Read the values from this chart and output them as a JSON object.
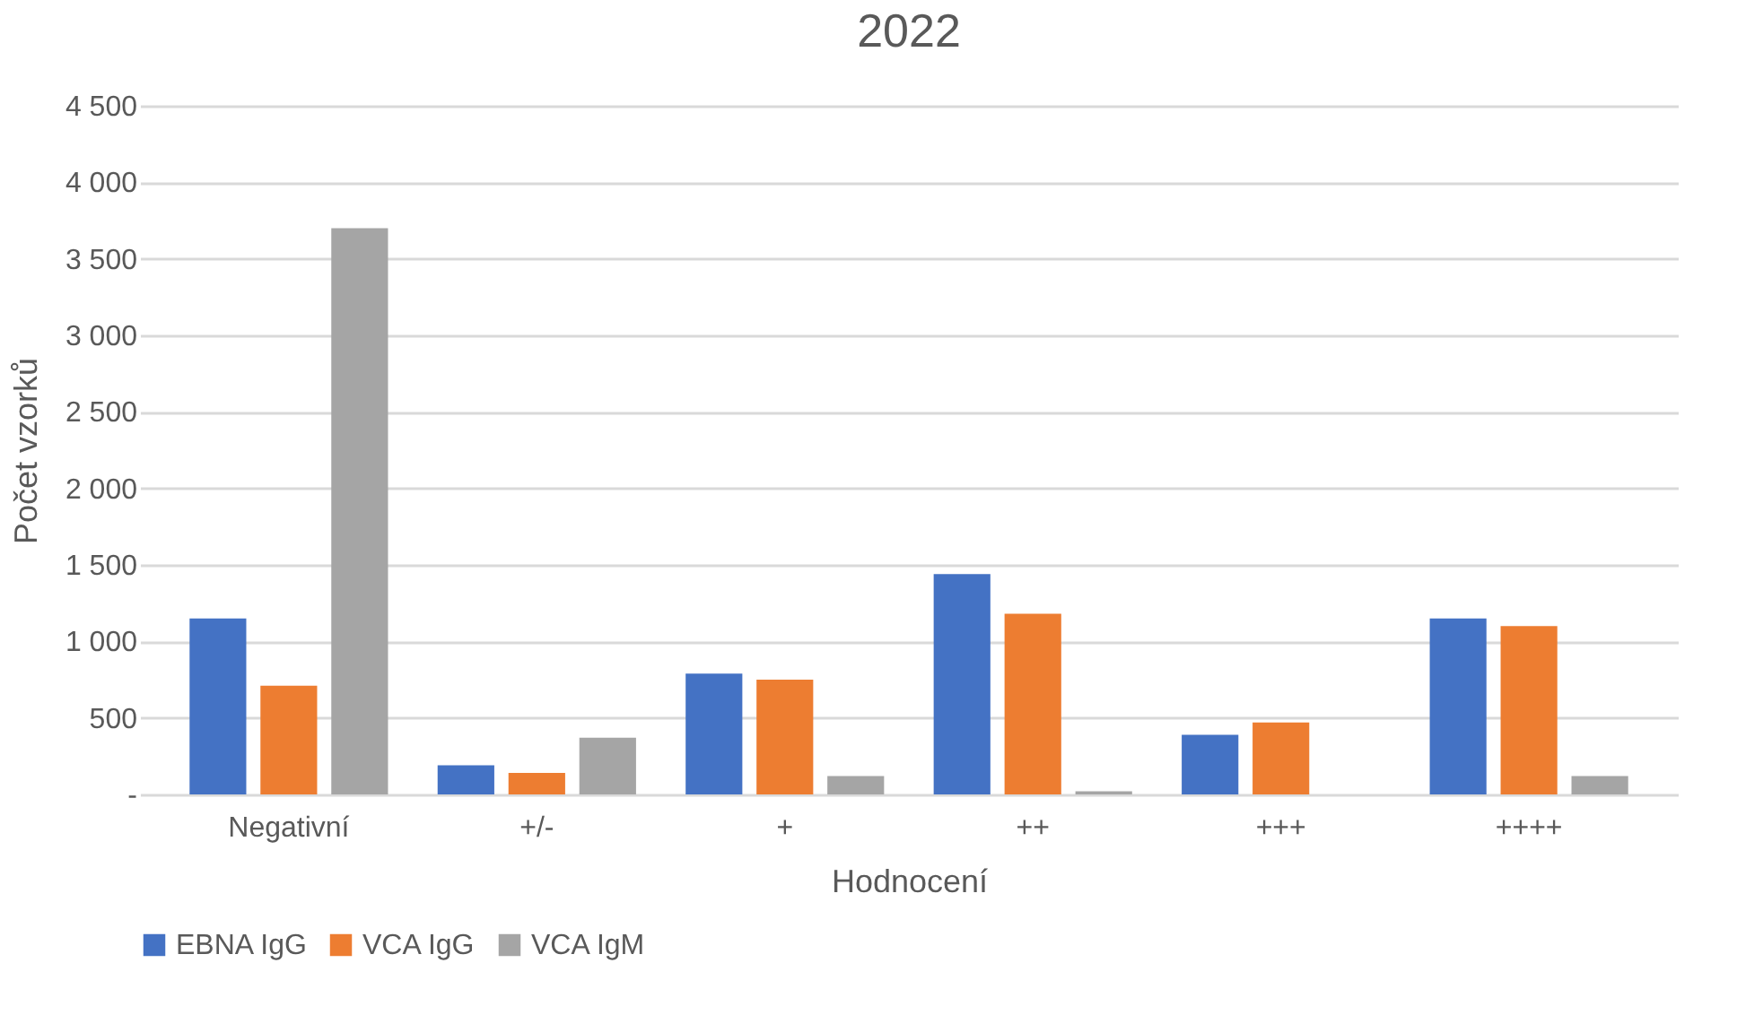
{
  "chart_data": {
    "type": "bar",
    "title": "2022",
    "xlabel": "Hodnocení",
    "ylabel": "Počet vzorků",
    "categories": [
      "Negativní",
      "+/-",
      "+",
      "++",
      "+++",
      "++++"
    ],
    "series": [
      {
        "name": "EBNA IgG",
        "color": "#4472c4",
        "values": [
          1150,
          190,
          790,
          1440,
          390,
          1150
        ]
      },
      {
        "name": "VCA IgG",
        "color": "#ed7d31",
        "values": [
          710,
          140,
          750,
          1180,
          470,
          1100
        ]
      },
      {
        "name": "VCA IgM",
        "color": "#a5a5a5",
        "values": [
          3700,
          370,
          120,
          20,
          null,
          120
        ]
      }
    ],
    "ylim": [
      0,
      4500
    ],
    "yticks": [
      {
        "value": 0,
        "label": "-"
      },
      {
        "value": 500,
        "label": "500"
      },
      {
        "value": 1000,
        "label": "1 000"
      },
      {
        "value": 1500,
        "label": "1 500"
      },
      {
        "value": 2000,
        "label": "2 000"
      },
      {
        "value": 2500,
        "label": "2 500"
      },
      {
        "value": 3000,
        "label": "3 000"
      },
      {
        "value": 3500,
        "label": "3 500"
      },
      {
        "value": 4000,
        "label": "4 000"
      },
      {
        "value": 4500,
        "label": "4 500"
      }
    ],
    "grid": "y",
    "legend": "bottom"
  }
}
